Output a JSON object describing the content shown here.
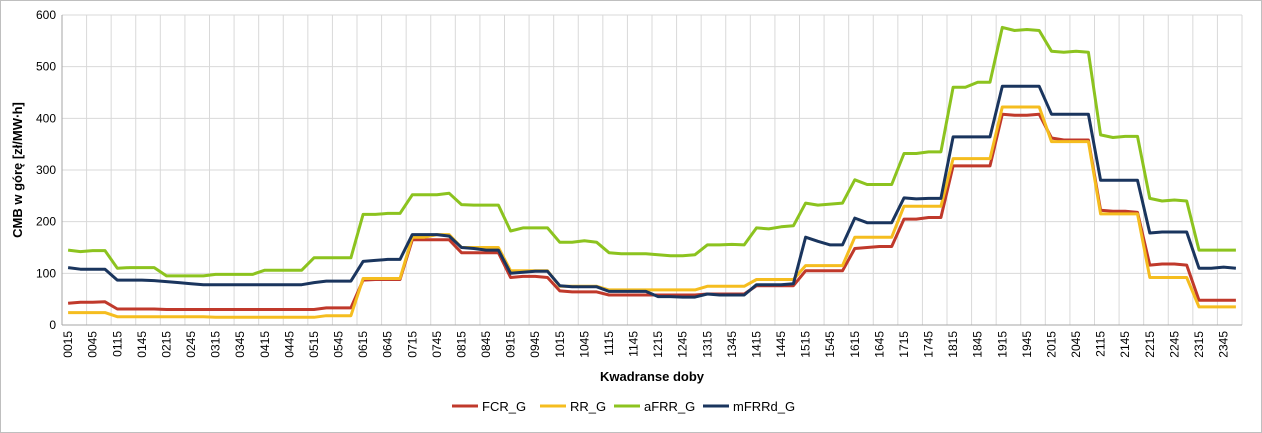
{
  "chart_data": {
    "type": "line",
    "xlabel": "Kwadranse doby",
    "ylabel": "CMB w górę [zł/MW∙h]",
    "ylim": [
      0,
      600
    ],
    "yticks": [
      0,
      100,
      200,
      300,
      400,
      500,
      600
    ],
    "grid": true,
    "legend": "bottom",
    "xtick_labels": [
      "0015",
      "0045",
      "0115",
      "0145",
      "0215",
      "0245",
      "0315",
      "0345",
      "0415",
      "0445",
      "0515",
      "0545",
      "0615",
      "0645",
      "0715",
      "0745",
      "0815",
      "0845",
      "0915",
      "0945",
      "1015",
      "1045",
      "1115",
      "1145",
      "1215",
      "1245",
      "1315",
      "1345",
      "1415",
      "1445",
      "1515",
      "1545",
      "1615",
      "1645",
      "1715",
      "1745",
      "1815",
      "1845",
      "1915",
      "1945",
      "2015",
      "2045",
      "2115",
      "2145",
      "2215",
      "2245",
      "2315",
      "2345"
    ],
    "series": [
      {
        "name": "FCR_G",
        "color": "#c0392b",
        "values": [
          42,
          44,
          44,
          45,
          31,
          31,
          31,
          31,
          30,
          30,
          30,
          30,
          30,
          30,
          30,
          30,
          30,
          30,
          30,
          30,
          30,
          33,
          33,
          33,
          87,
          88,
          88,
          88,
          165,
          165,
          165,
          165,
          140,
          140,
          140,
          140,
          92,
          94,
          94,
          92,
          66,
          64,
          64,
          64,
          58,
          58,
          58,
          58,
          58,
          58,
          58,
          58,
          60,
          60,
          60,
          60,
          76,
          76,
          76,
          76,
          105,
          105,
          105,
          105,
          148,
          150,
          152,
          152,
          205,
          205,
          208,
          208,
          308,
          308,
          308,
          308,
          408,
          406,
          406,
          408,
          362,
          358,
          358,
          358,
          222,
          220,
          220,
          218,
          116,
          118,
          118,
          116,
          48,
          48,
          48,
          48
        ]
      },
      {
        "name": "RR_G",
        "color": "#f5bd1f",
        "values": [
          24,
          24,
          24,
          24,
          16,
          16,
          16,
          16,
          16,
          16,
          16,
          16,
          15,
          15,
          15,
          15,
          15,
          15,
          15,
          15,
          15,
          18,
          18,
          18,
          90,
          90,
          90,
          90,
          170,
          170,
          175,
          175,
          150,
          150,
          150,
          150,
          105,
          105,
          105,
          105,
          75,
          75,
          75,
          75,
          68,
          68,
          68,
          68,
          68,
          68,
          68,
          68,
          75,
          75,
          75,
          75,
          88,
          88,
          88,
          88,
          115,
          115,
          115,
          115,
          170,
          170,
          170,
          170,
          230,
          230,
          230,
          230,
          322,
          322,
          322,
          322,
          422,
          422,
          422,
          422,
          355,
          355,
          355,
          355,
          215,
          215,
          215,
          215,
          92,
          92,
          92,
          92,
          35,
          35,
          35,
          35
        ]
      },
      {
        "name": "aFRR_G",
        "color": "#8cc31f",
        "values": [
          145,
          142,
          144,
          144,
          110,
          111,
          111,
          111,
          95,
          95,
          95,
          95,
          98,
          98,
          98,
          98,
          106,
          106,
          106,
          106,
          130,
          130,
          130,
          130,
          214,
          214,
          216,
          216,
          252,
          252,
          252,
          255,
          233,
          232,
          232,
          232,
          182,
          188,
          188,
          188,
          160,
          160,
          163,
          160,
          140,
          138,
          138,
          138,
          136,
          134,
          134,
          136,
          155,
          155,
          156,
          155,
          188,
          186,
          190,
          192,
          236,
          232,
          234,
          236,
          281,
          272,
          272,
          272,
          332,
          332,
          335,
          335,
          460,
          460,
          470,
          470,
          576,
          570,
          572,
          570,
          530,
          528,
          530,
          528,
          368,
          363,
          365,
          365,
          245,
          240,
          242,
          240,
          145,
          145,
          145,
          145
        ]
      },
      {
        "name": "mFRRd_G",
        "color": "#1a355e",
        "values": [
          111,
          108,
          108,
          108,
          87,
          87,
          87,
          86,
          84,
          82,
          80,
          78,
          78,
          78,
          78,
          78,
          78,
          78,
          78,
          78,
          82,
          85,
          85,
          85,
          123,
          125,
          127,
          127,
          175,
          175,
          175,
          172,
          150,
          148,
          145,
          145,
          100,
          102,
          104,
          104,
          76,
          74,
          74,
          74,
          65,
          65,
          65,
          65,
          55,
          55,
          54,
          54,
          60,
          58,
          58,
          58,
          78,
          78,
          78,
          80,
          170,
          162,
          155,
          155,
          207,
          198,
          198,
          198,
          246,
          244,
          245,
          245,
          364,
          364,
          364,
          364,
          462,
          462,
          462,
          462,
          408,
          408,
          408,
          408,
          280,
          280,
          280,
          280,
          178,
          180,
          180,
          180,
          110,
          110,
          112,
          110
        ]
      }
    ]
  }
}
